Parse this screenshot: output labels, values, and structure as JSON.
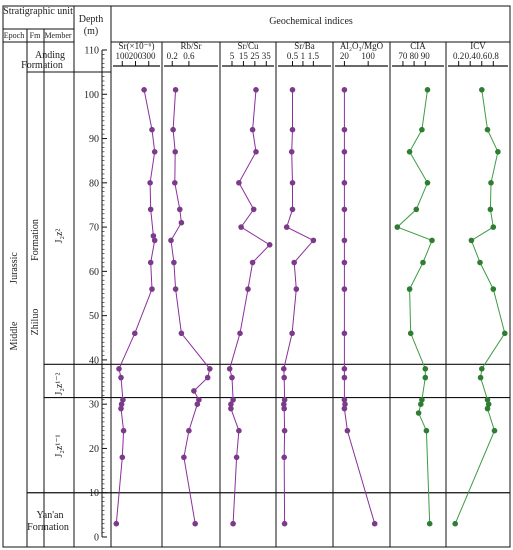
{
  "header": {
    "stratigraphic_unit": "Stratigraphic unit",
    "epoch": "Epoch",
    "fm": "Fm",
    "member": "Member",
    "depth": "Depth",
    "depth_unit": "(m)",
    "geochemical_indices": "Geochemical indices"
  },
  "strata": {
    "epoch_middle": "Middle",
    "epoch_jurassic": "Jurassic",
    "fm_anding": "Anding Formation",
    "fm_zhiluo": "Zhiluo",
    "fm_formation": "Formation",
    "fm_yanan": "Yan'an Formation",
    "member_upper": "J₂z²",
    "member_lower_2": "J₂z¹⁻²",
    "member_lower_1": "J₂z¹⁻¹"
  },
  "colors": {
    "purple_line": "#8b2f9b",
    "purple_marker": "#7b3a8a",
    "green_line": "#3e9b45",
    "green_marker": "#2e7d32",
    "frame": "#111111"
  },
  "chart_data": {
    "type": "line",
    "orientation": "vertical-profile",
    "y": {
      "label": "Depth (m)",
      "ylim": [
        0,
        110
      ],
      "ticks": [
        0,
        10,
        20,
        30,
        40,
        50,
        60,
        70,
        80,
        90,
        100,
        110
      ]
    },
    "panels": [
      {
        "title": "Sr(×10⁻⁶)",
        "ticks": [
          {
            "v": 100,
            "l": "100"
          },
          {
            "v": 200,
            "l": "200"
          },
          {
            "v": 300,
            "l": "300"
          }
        ],
        "xlim": [
          45,
          370
        ],
        "color": "purple",
        "points": [
          {
            "d": 101,
            "v": 265
          },
          {
            "d": 92,
            "v": 325
          },
          {
            "d": 87,
            "v": 345
          },
          {
            "d": 80,
            "v": 310
          },
          {
            "d": 74,
            "v": 315
          },
          {
            "d": 68,
            "v": 335
          },
          {
            "d": 67,
            "v": 345
          },
          {
            "d": 62,
            "v": 315
          },
          {
            "d": 56,
            "v": 325
          },
          {
            "d": 46,
            "v": 195
          },
          {
            "d": 38,
            "v": 75
          },
          {
            "d": 36,
            "v": 90
          },
          {
            "d": 31,
            "v": 105
          },
          {
            "d": 30,
            "v": 95
          },
          {
            "d": 29,
            "v": 90
          },
          {
            "d": 24,
            "v": 110
          },
          {
            "d": 18,
            "v": 100
          },
          {
            "d": 3,
            "v": 55
          }
        ]
      },
      {
        "title": "Rb/Sr",
        "ticks": [
          {
            "v": 0.2,
            "l": "0.2"
          },
          {
            "v": 0.6,
            "l": "0.6"
          }
        ],
        "xlim": [
          0.05,
          1.25
        ],
        "color": "purple",
        "points": [
          {
            "d": 101,
            "v": 0.28
          },
          {
            "d": 92,
            "v": 0.22
          },
          {
            "d": 87,
            "v": 0.27
          },
          {
            "d": 80,
            "v": 0.26
          },
          {
            "d": 74,
            "v": 0.38
          },
          {
            "d": 71,
            "v": 0.42
          },
          {
            "d": 67,
            "v": 0.17
          },
          {
            "d": 62,
            "v": 0.24
          },
          {
            "d": 56,
            "v": 0.28
          },
          {
            "d": 46,
            "v": 0.42
          },
          {
            "d": 38,
            "v": 1.1
          },
          {
            "d": 36,
            "v": 1.05
          },
          {
            "d": 33,
            "v": 0.72
          },
          {
            "d": 31,
            "v": 0.84
          },
          {
            "d": 30,
            "v": 0.8
          },
          {
            "d": 24,
            "v": 0.6
          },
          {
            "d": 18,
            "v": 0.48
          },
          {
            "d": 3,
            "v": 0.75
          }
        ]
      },
      {
        "title": "Sr/Cu",
        "ticks": [
          {
            "v": 5,
            "l": "5"
          },
          {
            "v": 15,
            "l": "15"
          },
          {
            "v": 25,
            "l": "25"
          },
          {
            "v": 35,
            "l": "35"
          }
        ],
        "xlim": [
          -2,
          40
        ],
        "color": "purple",
        "points": [
          {
            "d": 101,
            "v": 26
          },
          {
            "d": 92,
            "v": 23
          },
          {
            "d": 87,
            "v": 26
          },
          {
            "d": 80,
            "v": 11
          },
          {
            "d": 74,
            "v": 24
          },
          {
            "d": 70,
            "v": 13
          },
          {
            "d": 66,
            "v": 38
          },
          {
            "d": 62,
            "v": 23
          },
          {
            "d": 56,
            "v": 19
          },
          {
            "d": 46,
            "v": 12
          },
          {
            "d": 38,
            "v": 3
          },
          {
            "d": 36,
            "v": 5
          },
          {
            "d": 31,
            "v": 6
          },
          {
            "d": 30,
            "v": 4
          },
          {
            "d": 29,
            "v": 4
          },
          {
            "d": 24,
            "v": 11
          },
          {
            "d": 18,
            "v": 9
          },
          {
            "d": 3,
            "v": 6
          }
        ]
      },
      {
        "title": "Sr/Ba",
        "ticks": [
          {
            "v": 0.5,
            "l": "0.5"
          },
          {
            "v": 1,
            "l": "1"
          },
          {
            "v": 1.5,
            "l": "1.5"
          }
        ],
        "xlim": [
          -0.1,
          2.25
        ],
        "color": "purple",
        "points": [
          {
            "d": 101,
            "v": 0.5
          },
          {
            "d": 92,
            "v": 0.5
          },
          {
            "d": 87,
            "v": 0.46
          },
          {
            "d": 80,
            "v": 0.5
          },
          {
            "d": 74,
            "v": 0.5
          },
          {
            "d": 70,
            "v": 0.22
          },
          {
            "d": 67,
            "v": 1.5
          },
          {
            "d": 62,
            "v": 0.58
          },
          {
            "d": 56,
            "v": 0.68
          },
          {
            "d": 46,
            "v": 0.48
          },
          {
            "d": 38,
            "v": 0.08
          },
          {
            "d": 36,
            "v": 0.1
          },
          {
            "d": 31,
            "v": 0.12
          },
          {
            "d": 30,
            "v": 0.08
          },
          {
            "d": 29,
            "v": 0.1
          },
          {
            "d": 24,
            "v": 0.12
          },
          {
            "d": 18,
            "v": 0.1
          },
          {
            "d": 3,
            "v": 0.12
          }
        ]
      },
      {
        "title": "Al₂O₃/MgO",
        "ticks": [
          {
            "v": 20,
            "l": "20"
          },
          {
            "v": 100,
            "l": "100"
          }
        ],
        "xlim": [
          -5,
          160
        ],
        "color": "purple",
        "points": [
          {
            "d": 101,
            "v": 20
          },
          {
            "d": 92,
            "v": 20
          },
          {
            "d": 87,
            "v": 20
          },
          {
            "d": 80,
            "v": 20
          },
          {
            "d": 74,
            "v": 20
          },
          {
            "d": 67,
            "v": 20
          },
          {
            "d": 62,
            "v": 20
          },
          {
            "d": 56,
            "v": 20
          },
          {
            "d": 46,
            "v": 20
          },
          {
            "d": 38,
            "v": 20
          },
          {
            "d": 36,
            "v": 20
          },
          {
            "d": 31,
            "v": 20
          },
          {
            "d": 30,
            "v": 22
          },
          {
            "d": 29,
            "v": 20
          },
          {
            "d": 24,
            "v": 30
          },
          {
            "d": 3,
            "v": 122
          }
        ]
      },
      {
        "title": "CIA",
        "ticks": [
          {
            "v": 70,
            "l": "70"
          },
          {
            "v": 80,
            "l": "80"
          },
          {
            "v": 90,
            "l": "90"
          }
        ],
        "xlim": [
          62,
          105
        ],
        "color": "green",
        "points": [
          {
            "d": 101,
            "v": 92
          },
          {
            "d": 92,
            "v": 87
          },
          {
            "d": 87,
            "v": 76
          },
          {
            "d": 80,
            "v": 92
          },
          {
            "d": 74,
            "v": 82
          },
          {
            "d": 70,
            "v": 65
          },
          {
            "d": 67,
            "v": 96
          },
          {
            "d": 62,
            "v": 88
          },
          {
            "d": 56,
            "v": 76
          },
          {
            "d": 46,
            "v": 77
          },
          {
            "d": 38,
            "v": 90
          },
          {
            "d": 36,
            "v": 90
          },
          {
            "d": 31,
            "v": 87
          },
          {
            "d": 30,
            "v": 86
          },
          {
            "d": 28,
            "v": 84
          },
          {
            "d": 24,
            "v": 91
          },
          {
            "d": 3,
            "v": 94
          }
        ]
      },
      {
        "title": "ICV",
        "ticks": [
          {
            "v": 0.2,
            "l": "0.2"
          },
          {
            "v": 0.4,
            "l": "0.4"
          },
          {
            "v": 0.6,
            "l": "0.6"
          },
          {
            "v": 0.8,
            "l": "0.8"
          }
        ],
        "xlim": [
          0.05,
          1.02
        ],
        "color": "green",
        "points": [
          {
            "d": 101,
            "v": 0.6
          },
          {
            "d": 92,
            "v": 0.7
          },
          {
            "d": 87,
            "v": 0.88
          },
          {
            "d": 80,
            "v": 0.76
          },
          {
            "d": 74,
            "v": 0.75
          },
          {
            "d": 70,
            "v": 0.8
          },
          {
            "d": 67,
            "v": 0.42
          },
          {
            "d": 62,
            "v": 0.57
          },
          {
            "d": 56,
            "v": 0.8
          },
          {
            "d": 46,
            "v": 1.0
          },
          {
            "d": 38,
            "v": 0.6
          },
          {
            "d": 36,
            "v": 0.58
          },
          {
            "d": 31,
            "v": 0.7
          },
          {
            "d": 30,
            "v": 0.72
          },
          {
            "d": 29,
            "v": 0.7
          },
          {
            "d": 24,
            "v": 0.82
          },
          {
            "d": 3,
            "v": 0.14
          }
        ]
      }
    ]
  }
}
